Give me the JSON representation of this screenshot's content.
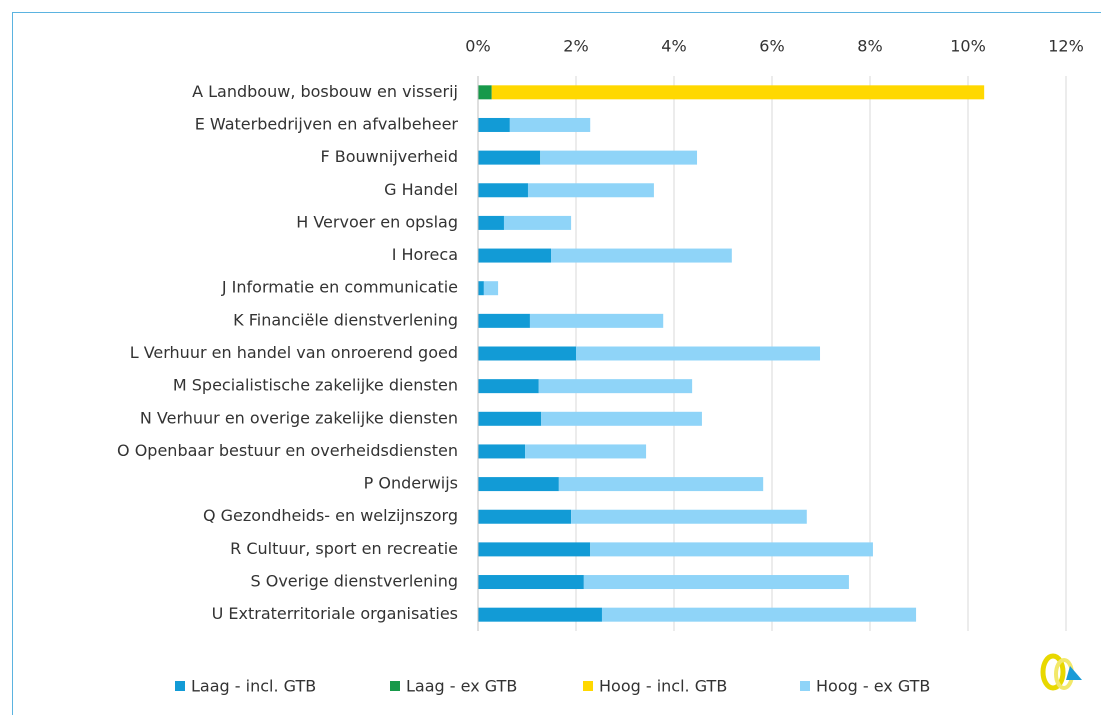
{
  "chart_data": {
    "type": "stacked-barh",
    "categories": [
      "A Landbouw, bosbouw en visserij",
      "E Waterbedrijven en afvalbeheer",
      "F Bouwnijverheid",
      "G Handel",
      "H Vervoer en opslag",
      "I Horeca",
      "J Informatie en communicatie",
      "K Financiële dienstverlening",
      "L Verhuur en handel van onroerend goed",
      "M Specialistische zakelijke diensten",
      "N Verhuur en overige zakelijke diensten",
      "O Openbaar bestuur en overheidsdiensten",
      "P Onderwijs",
      "Q Gezondheids- en welzijnszorg",
      "R Cultuur, sport en recreatie",
      "S Overige dienstverlening",
      "U Extraterritoriale organisaties"
    ],
    "series": [
      {
        "name": "Laag - incl. GTB",
        "color": "#129bd6",
        "values": [
          null,
          0.65,
          1.27,
          1.02,
          0.53,
          1.49,
          0.12,
          1.06,
          2.0,
          1.24,
          1.29,
          0.96,
          1.65,
          1.9,
          2.29,
          2.16,
          2.53
        ]
      },
      {
        "name": "Laag - ex GTB",
        "color": "#17994a",
        "values": [
          0.28,
          null,
          null,
          null,
          null,
          null,
          null,
          null,
          null,
          null,
          null,
          null,
          null,
          null,
          null,
          null,
          null
        ]
      },
      {
        "name": "Hoog - incl. GTB",
        "color": "#ffd800",
        "values": [
          10.05,
          null,
          null,
          null,
          null,
          null,
          null,
          null,
          null,
          null,
          null,
          null,
          null,
          null,
          null,
          null,
          null
        ]
      },
      {
        "name": "Hoog - ex GTB",
        "color": "#8fd4f8",
        "values": [
          null,
          1.64,
          3.2,
          2.57,
          1.37,
          3.69,
          0.29,
          2.72,
          4.98,
          3.13,
          3.28,
          2.47,
          4.17,
          4.81,
          5.77,
          5.41,
          6.41
        ]
      }
    ],
    "xlim": [
      0,
      12
    ],
    "xticks": [
      {
        "value": 0,
        "label": "0%"
      },
      {
        "value": 2,
        "label": "2%"
      },
      {
        "value": 4,
        "label": "4%"
      },
      {
        "value": 6,
        "label": "6%"
      },
      {
        "value": 8,
        "label": "8%"
      },
      {
        "value": 10,
        "label": "10%"
      },
      {
        "value": 12,
        "label": "12%"
      }
    ],
    "grid": true,
    "legend": "bottom"
  }
}
